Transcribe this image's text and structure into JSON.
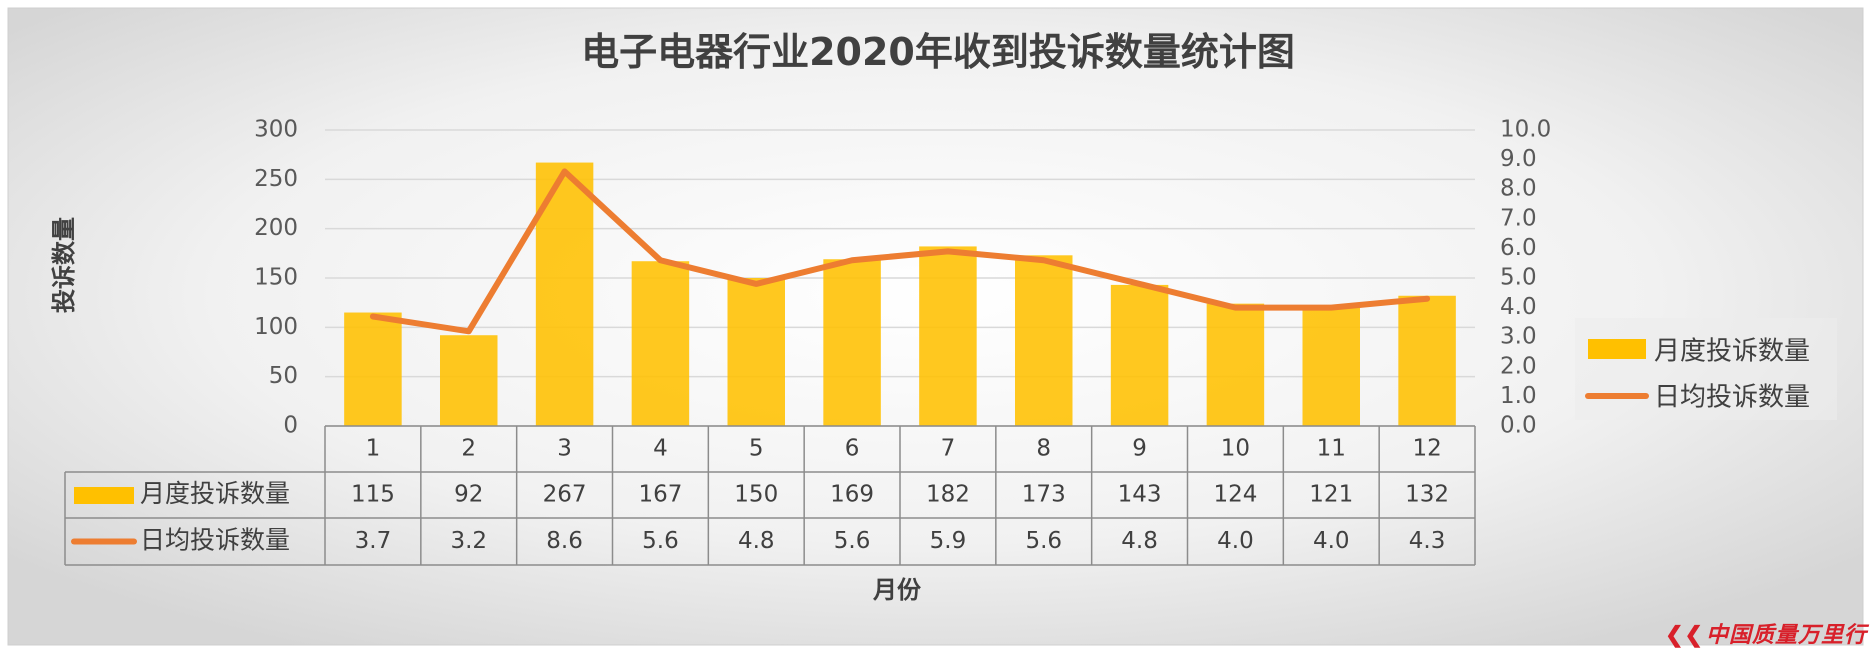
{
  "chart_data": {
    "type": "bar",
    "title": "电子电器行业2020年收到投诉数量统计图",
    "xlabel": "月份",
    "ylabel": "投诉数量",
    "categories": [
      "1",
      "2",
      "3",
      "4",
      "5",
      "6",
      "7",
      "8",
      "9",
      "10",
      "11",
      "12"
    ],
    "series": [
      {
        "name": "月度投诉数量",
        "type": "bar",
        "axis": "left",
        "color": "#FFC000",
        "values": [
          115,
          92,
          267,
          167,
          150,
          169,
          182,
          173,
          143,
          124,
          121,
          132
        ],
        "labels": [
          "115",
          "92",
          "267",
          "167",
          "150",
          "169",
          "182",
          "173",
          "143",
          "124",
          "121",
          "132"
        ]
      },
      {
        "name": "日均投诉数量",
        "type": "line",
        "axis": "right",
        "color": "#ED7D31",
        "values": [
          3.7,
          3.2,
          8.6,
          5.6,
          4.8,
          5.6,
          5.9,
          5.6,
          4.8,
          4.0,
          4.0,
          4.3
        ],
        "labels": [
          "3.7",
          "3.2",
          "8.6",
          "5.6",
          "4.8",
          "5.6",
          "5.9",
          "5.6",
          "4.8",
          "4.0",
          "4.0",
          "4.3"
        ]
      }
    ],
    "ylim": [
      0,
      300
    ],
    "yticks": [
      "0",
      "50",
      "100",
      "150",
      "200",
      "250",
      "300"
    ],
    "y2lim": [
      0,
      10
    ],
    "y2ticks": [
      "0.0",
      "1.0",
      "2.0",
      "3.0",
      "4.0",
      "5.0",
      "6.0",
      "7.0",
      "8.0",
      "9.0",
      "10.0"
    ],
    "grid": true,
    "legend": "right",
    "data_table": true
  },
  "watermark": {
    "text": "中国质量万里行",
    "color": "#D8202A"
  }
}
